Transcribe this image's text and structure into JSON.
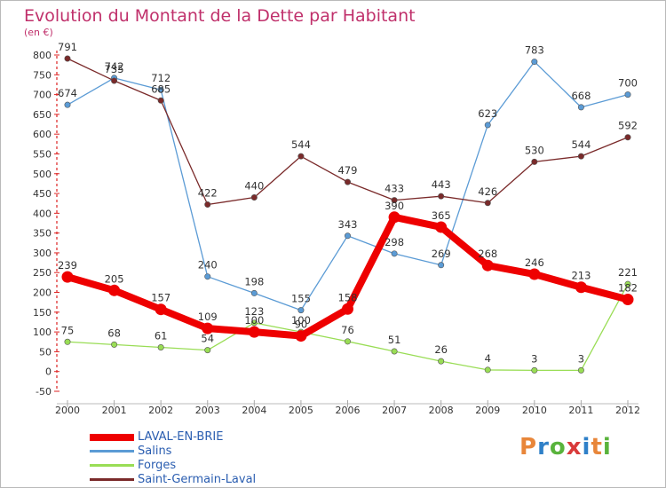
{
  "header": {
    "title": "Evolution du Montant de la Dette par Habitant",
    "unit": "(en €)"
  },
  "logo": {
    "text": "Proxiti",
    "colors": [
      "#e8863a",
      "#2f80c8",
      "#59b33c",
      "#d93a3a",
      "#2f80c8",
      "#e8863a",
      "#59b33c"
    ]
  },
  "chart_data": {
    "type": "line",
    "title": "Evolution du Montant de la Dette par Habitant",
    "ylabel": "(en €)",
    "xlabel": "",
    "ylim": [
      -50,
      800
    ],
    "yticks": [
      -50,
      0,
      50,
      100,
      150,
      200,
      250,
      300,
      350,
      400,
      450,
      500,
      550,
      600,
      650,
      700,
      750,
      800
    ],
    "grid": false,
    "legend_position": "bottom-left",
    "categories": [
      "2000",
      "2001",
      "2002",
      "2003",
      "2004",
      "2005",
      "2006",
      "2007",
      "2008",
      "2009",
      "2010",
      "2011",
      "2012"
    ],
    "series": [
      {
        "name": "LAVAL-EN-BRIE",
        "color": "#ee0000",
        "values": [
          239,
          205,
          157,
          109,
          100,
          90,
          158,
          390,
          365,
          268,
          246,
          213,
          182
        ]
      },
      {
        "name": "Salins",
        "color": "#5b9bd5",
        "values": [
          674,
          742,
          712,
          240,
          198,
          155,
          343,
          298,
          269,
          623,
          783,
          668,
          700
        ]
      },
      {
        "name": "Forges",
        "color": "#99dd55",
        "values": [
          75,
          68,
          61,
          54,
          123,
          100,
          76,
          51,
          26,
          4,
          3,
          3,
          221
        ]
      },
      {
        "name": "Saint-Germain-Laval",
        "color": "#7a2a2a",
        "values": [
          791,
          735,
          685,
          422,
          440,
          544,
          479,
          433,
          443,
          426,
          530,
          544,
          592
        ]
      }
    ]
  }
}
